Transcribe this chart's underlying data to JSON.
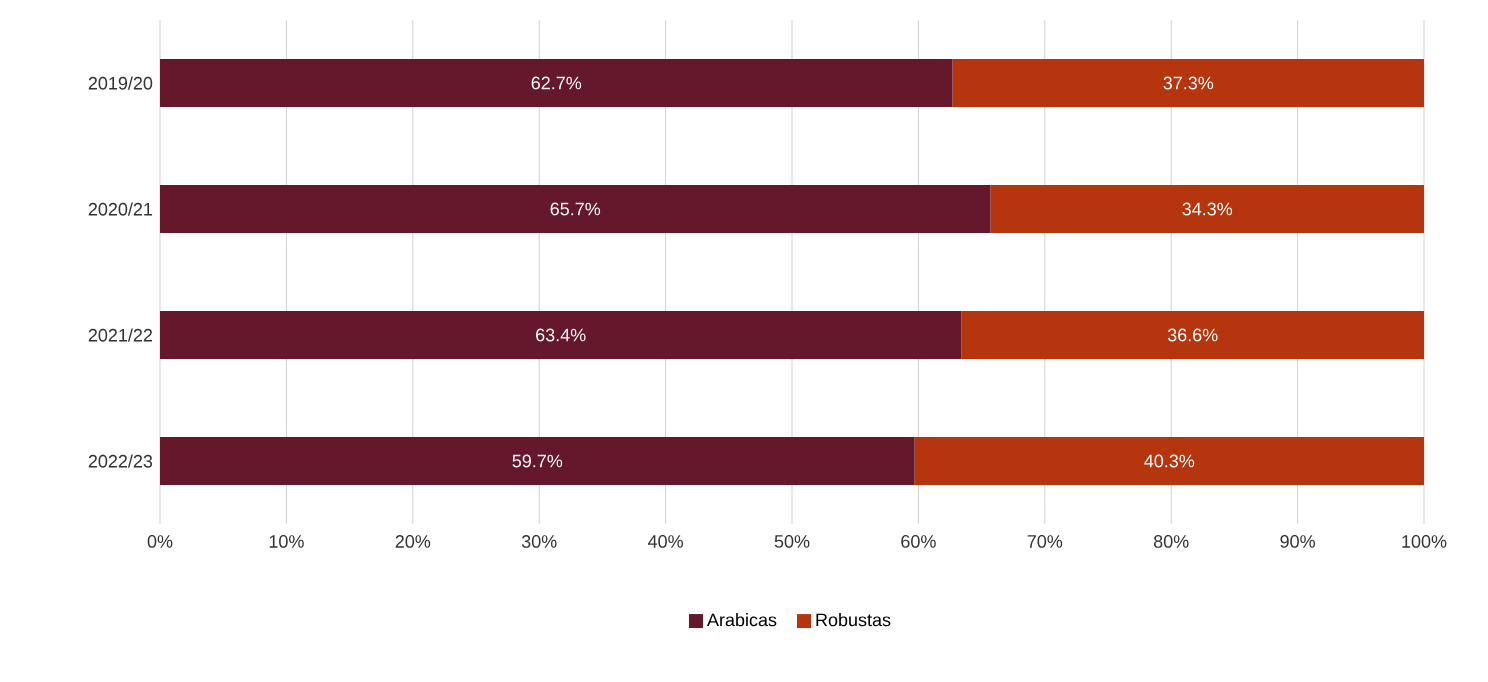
{
  "chart_data": {
    "type": "bar",
    "orientation": "horizontal",
    "stacked": true,
    "categories": [
      "2019/20",
      "2020/21",
      "2021/22",
      "2022/23"
    ],
    "series": [
      {
        "name": "Arabicas",
        "color": "#65172b",
        "values": [
          62.7,
          65.7,
          63.4,
          59.7
        ],
        "value_labels": [
          "62.7%",
          "65.7%",
          "63.4%",
          "59.7%"
        ]
      },
      {
        "name": "Robustas",
        "color": "#b5360e",
        "values": [
          37.3,
          34.3,
          36.6,
          40.3
        ],
        "value_labels": [
          "37.3%",
          "34.3%",
          "36.6%",
          "40.3%"
        ]
      }
    ],
    "xlim": [
      0,
      100
    ],
    "xticks": [
      {
        "value": 0,
        "label": "0%"
      },
      {
        "value": 10,
        "label": "10%"
      },
      {
        "value": 20,
        "label": "20%"
      },
      {
        "value": 30,
        "label": "30%"
      },
      {
        "value": 40,
        "label": "40%"
      },
      {
        "value": 50,
        "label": "50%"
      },
      {
        "value": 60,
        "label": "60%"
      },
      {
        "value": 70,
        "label": "70%"
      },
      {
        "value": 80,
        "label": "80%"
      },
      {
        "value": 90,
        "label": "90%"
      },
      {
        "value": 100,
        "label": "100%"
      }
    ],
    "grid": "x",
    "legend": "bottom"
  }
}
